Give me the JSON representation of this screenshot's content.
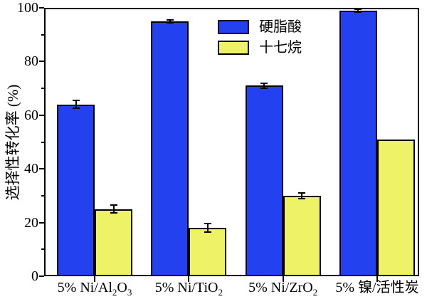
{
  "chart_data": {
    "type": "bar",
    "title": "",
    "xlabel": "",
    "ylabel": "选择性转化率 (%)",
    "ylim": [
      0,
      100
    ],
    "yticks": [
      0,
      20,
      40,
      60,
      80,
      100
    ],
    "minor_tick_step": 10,
    "grid": false,
    "legend_position": "top-center-inside",
    "categories": [
      [
        {
          "t": "5% Ni/Al"
        },
        {
          "t": "2",
          "sub": true
        },
        {
          "t": "O"
        },
        {
          "t": "3",
          "sub": true
        }
      ],
      [
        {
          "t": "5% Ni/TiO"
        },
        {
          "t": "2",
          "sub": true
        }
      ],
      [
        {
          "t": "5% Ni/ZrO"
        },
        {
          "t": "2",
          "sub": true
        }
      ],
      [
        {
          "t": "5% 镍/活性炭"
        }
      ]
    ],
    "series": [
      {
        "name": "硬脂酸",
        "color": "#2441f0",
        "values": [
          64,
          95,
          71,
          99
        ],
        "errors": [
          1.5,
          0.5,
          1.0,
          0.5
        ]
      },
      {
        "name": "十七烷",
        "color": "#edf266",
        "values": [
          25,
          18,
          30,
          51
        ],
        "errors": [
          1.5,
          1.5,
          1.0,
          0
        ]
      }
    ]
  },
  "colors": {
    "background": "#ffffff",
    "axis": "#000000",
    "bar_border": "#000000",
    "series_blue": "#2441f0",
    "series_yellow": "#edf266"
  }
}
